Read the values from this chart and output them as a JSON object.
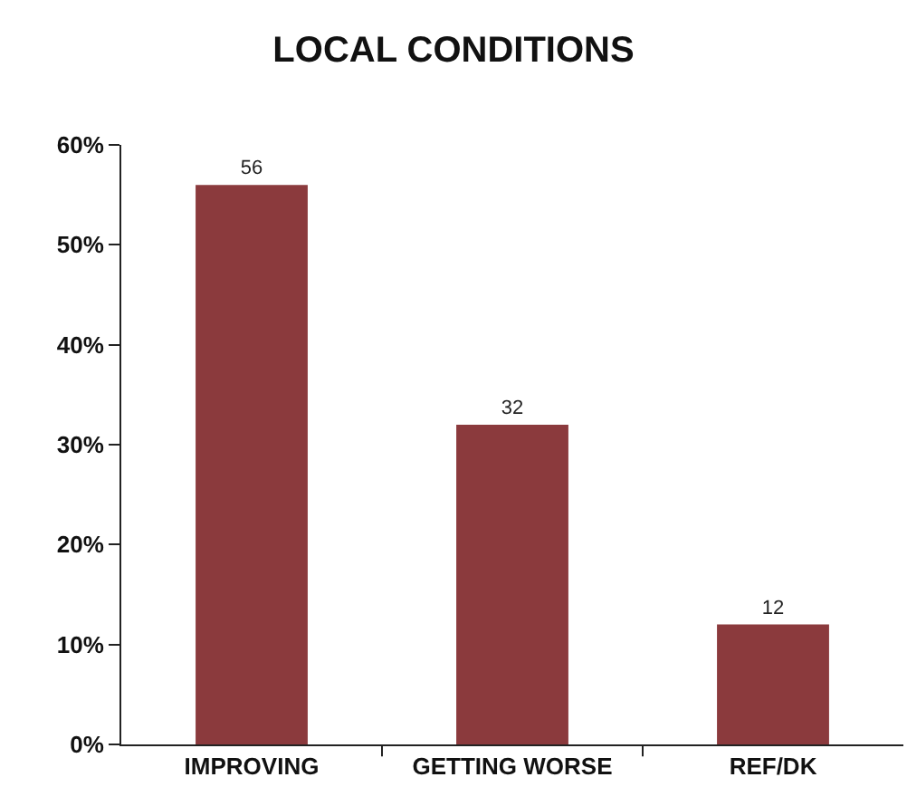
{
  "chart_data": {
    "type": "bar",
    "title": "LOCAL CONDITIONS",
    "categories": [
      "IMPROVING",
      "GETTING WORSE",
      "REF/DK"
    ],
    "values": [
      56,
      32,
      12
    ],
    "color": "#8b3a3d",
    "ylim": [
      0,
      60
    ],
    "yticks": [
      {
        "value": 0,
        "label": "0%"
      },
      {
        "value": 10,
        "label": "10%"
      },
      {
        "value": 20,
        "label": "20%"
      },
      {
        "value": 30,
        "label": "30%"
      },
      {
        "value": 40,
        "label": "40%"
      },
      {
        "value": 50,
        "label": "50%"
      },
      {
        "value": 60,
        "label": "60%"
      }
    ],
    "grid": false,
    "data_labels": true
  }
}
